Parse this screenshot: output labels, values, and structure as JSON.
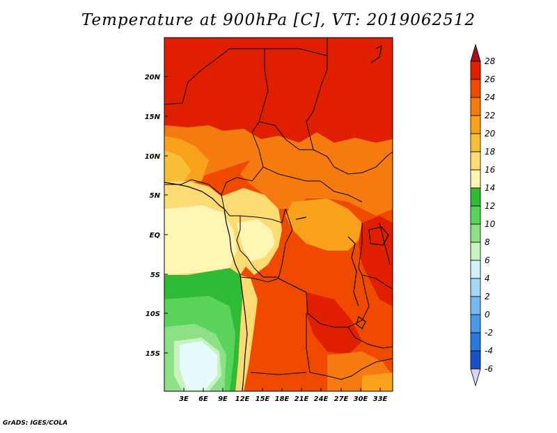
{
  "title": "Temperature at 900hPa [C], VT: 2019062512",
  "footer": "GrADS: IGES/COLA",
  "map": {
    "lat_labels": [
      "20N",
      "15N",
      "10N",
      "5N",
      "EQ",
      "5S",
      "10S",
      "15S"
    ],
    "lon_labels": [
      "3E",
      "6E",
      "9E",
      "12E",
      "15E",
      "18E",
      "21E",
      "24E",
      "27E",
      "30E",
      "33E"
    ]
  },
  "colorbar": {
    "labels": [
      "28",
      "26",
      "24",
      "22",
      "20",
      "18",
      "16",
      "14",
      "12",
      "10",
      "8",
      "6",
      "4",
      "2",
      "0",
      "-2",
      "-4",
      "-6"
    ],
    "colors": [
      "#a50f15",
      "#e01e00",
      "#f04a00",
      "#f57a10",
      "#f9a11b",
      "#f8c038",
      "#fcdc72",
      "#fff5b5",
      "#2fbb36",
      "#5ad35a",
      "#8ee087",
      "#c8f2c0",
      "#d4f0fc",
      "#a6d8f5",
      "#75b9ee",
      "#4a98e6",
      "#2a77dd",
      "#1651ca",
      "#0c2f9e",
      "#0a0f66",
      "#d8d4f4"
    ]
  },
  "legend_region_colors": {
    "sahara": "#e01e00",
    "hot_belt": "#f04a00",
    "warm": "#f57a10",
    "mild": "#f9a11b",
    "cooler": "#fcdc72",
    "coast": "#fff5b5",
    "green_dark": "#2fbb36",
    "green_mid": "#8ee087",
    "green_light": "#c8f2c0",
    "pale_blue": "#e6fbfb"
  }
}
